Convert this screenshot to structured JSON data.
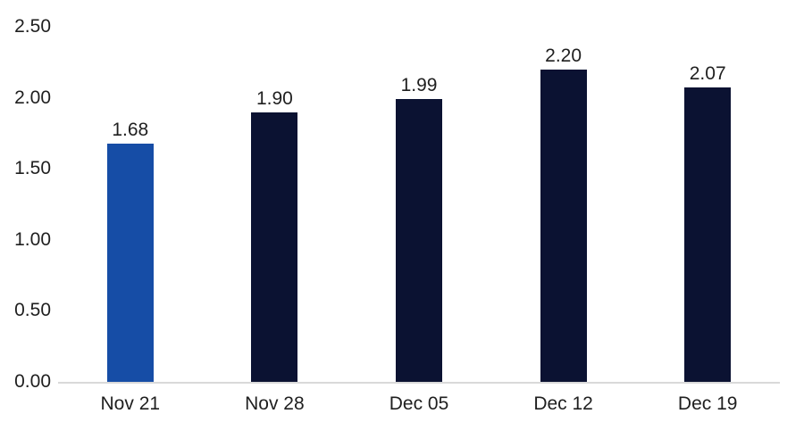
{
  "chart_data": {
    "type": "bar",
    "title": "",
    "xlabel": "",
    "ylabel": "",
    "categories": [
      "Nov 21",
      "Nov 28",
      "Dec 05",
      "Dec 12",
      "Dec 19"
    ],
    "values": [
      1.68,
      1.9,
      1.99,
      2.2,
      2.07
    ],
    "value_labels": [
      "1.68",
      "1.90",
      "1.99",
      "2.20",
      "2.07"
    ],
    "ylim": [
      0,
      2.5
    ],
    "ytick_values": [
      0,
      0.5,
      1.0,
      1.5,
      2.0,
      2.5
    ],
    "ytick_labels": [
      "0.00",
      "0.50",
      "1.00",
      "1.50",
      "2.00",
      "2.50"
    ],
    "grid": false,
    "legend": false,
    "highlight_index": 0,
    "colors": {
      "highlight_bar": "#164DA6",
      "default_bar": "#0B1232",
      "axis_line": "#D9D9D9",
      "label_text": "#1F1F1F",
      "background": "#FFFFFF"
    }
  }
}
